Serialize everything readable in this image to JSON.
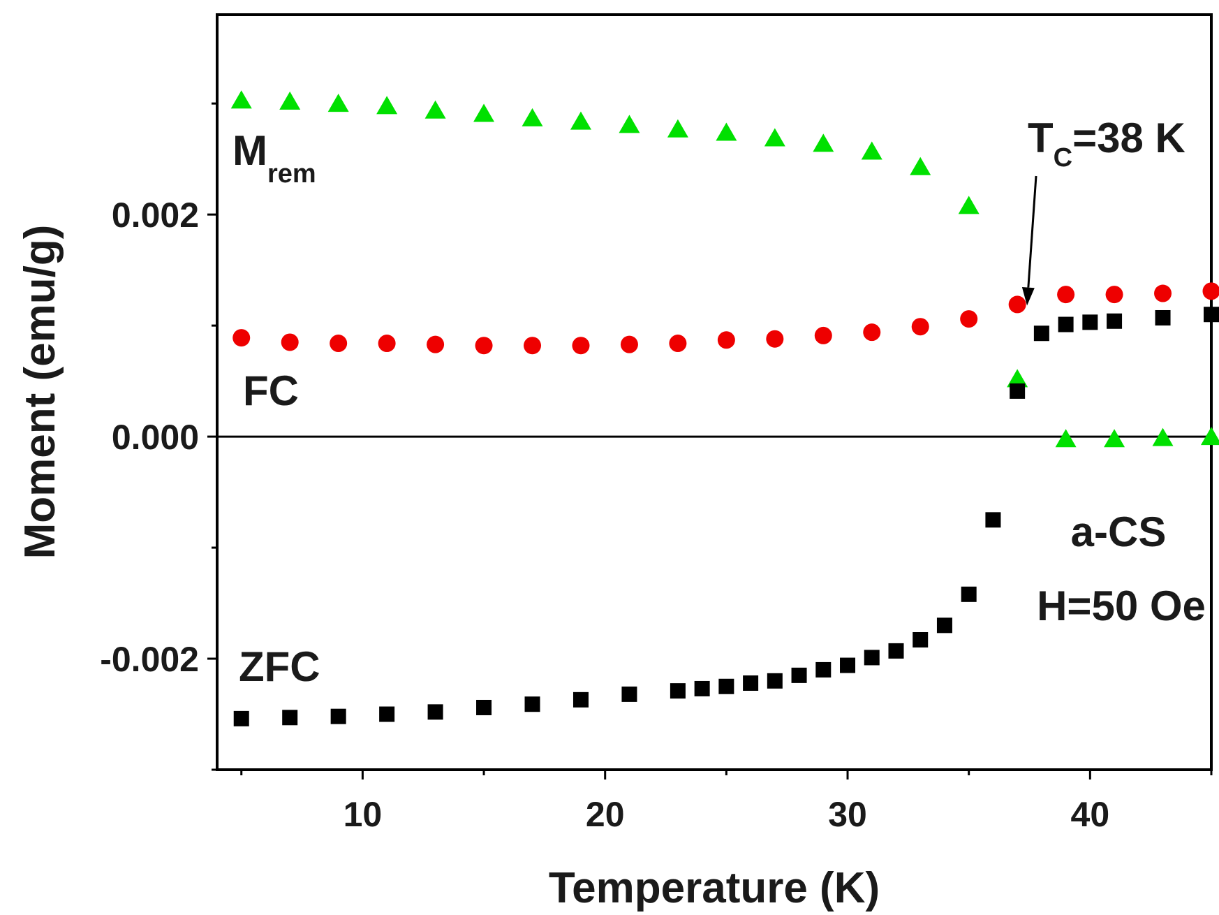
{
  "chart_data": {
    "type": "scatter",
    "xlabel": "Temperature (K)",
    "ylabel": "Moment (emu/g)",
    "xlim": [
      4,
      45
    ],
    "ylim": [
      -0.003,
      0.0038
    ],
    "xticks": [
      10,
      20,
      30,
      40
    ],
    "xtick_labels": [
      "10",
      "20",
      "30",
      "40"
    ],
    "yticks": [
      -0.002,
      0.0,
      0.002
    ],
    "ytick_labels": [
      "-0.002",
      "0.000",
      "0.002"
    ],
    "zero_line": 0,
    "annotations": {
      "mrem": {
        "main": "M",
        "sub": "rem"
      },
      "fc": "FC",
      "zfc": "ZFC",
      "tc": {
        "main": "T",
        "sub": "C",
        "rest": "=38 K",
        "arrow_to": [
          37.4,
          0.00118
        ]
      },
      "sample": "a-CS",
      "field": "H=50 Oe"
    },
    "series": [
      {
        "name": "M_rem",
        "marker": "triangle",
        "color": "#00e000",
        "x": [
          5,
          7,
          9,
          11,
          13,
          15,
          17,
          19,
          21,
          23,
          25,
          27,
          29,
          31,
          33,
          35,
          37,
          39,
          41,
          43,
          45
        ],
        "y": [
          0.00303,
          0.00302,
          0.003,
          0.00298,
          0.00294,
          0.00291,
          0.00287,
          0.00284,
          0.00281,
          0.00277,
          0.00274,
          0.00269,
          0.00264,
          0.00257,
          0.00243,
          0.00208,
          0.00052,
          -2e-05,
          -2e-05,
          -1e-05,
          0.0
        ]
      },
      {
        "name": "FC",
        "marker": "circle",
        "color": "#ee0000",
        "x": [
          5,
          7,
          9,
          11,
          13,
          15,
          17,
          19,
          21,
          23,
          25,
          27,
          29,
          31,
          33,
          35,
          37,
          39,
          41,
          43,
          45
        ],
        "y": [
          0.00089,
          0.00085,
          0.00084,
          0.00084,
          0.00083,
          0.00082,
          0.00082,
          0.00082,
          0.00083,
          0.00084,
          0.00087,
          0.00088,
          0.00091,
          0.00094,
          0.00099,
          0.00106,
          0.00119,
          0.00128,
          0.00128,
          0.00129,
          0.00131
        ]
      },
      {
        "name": "ZFC",
        "marker": "square",
        "color": "#000000",
        "x": [
          5,
          7,
          9,
          11,
          13,
          15,
          17,
          19,
          21,
          23,
          24,
          25,
          26,
          27,
          28,
          29,
          30,
          31,
          32,
          33,
          34,
          35,
          36,
          37,
          38,
          39,
          40,
          41,
          43,
          45
        ],
        "y": [
          -0.00254,
          -0.00253,
          -0.00252,
          -0.0025,
          -0.00248,
          -0.00244,
          -0.00241,
          -0.00237,
          -0.00232,
          -0.00229,
          -0.00227,
          -0.00225,
          -0.00222,
          -0.0022,
          -0.00215,
          -0.0021,
          -0.00206,
          -0.00199,
          -0.00193,
          -0.00183,
          -0.0017,
          -0.00142,
          -0.00075,
          0.00041,
          0.00093,
          0.00101,
          0.00103,
          0.00104,
          0.00107,
          0.0011
        ]
      }
    ]
  }
}
